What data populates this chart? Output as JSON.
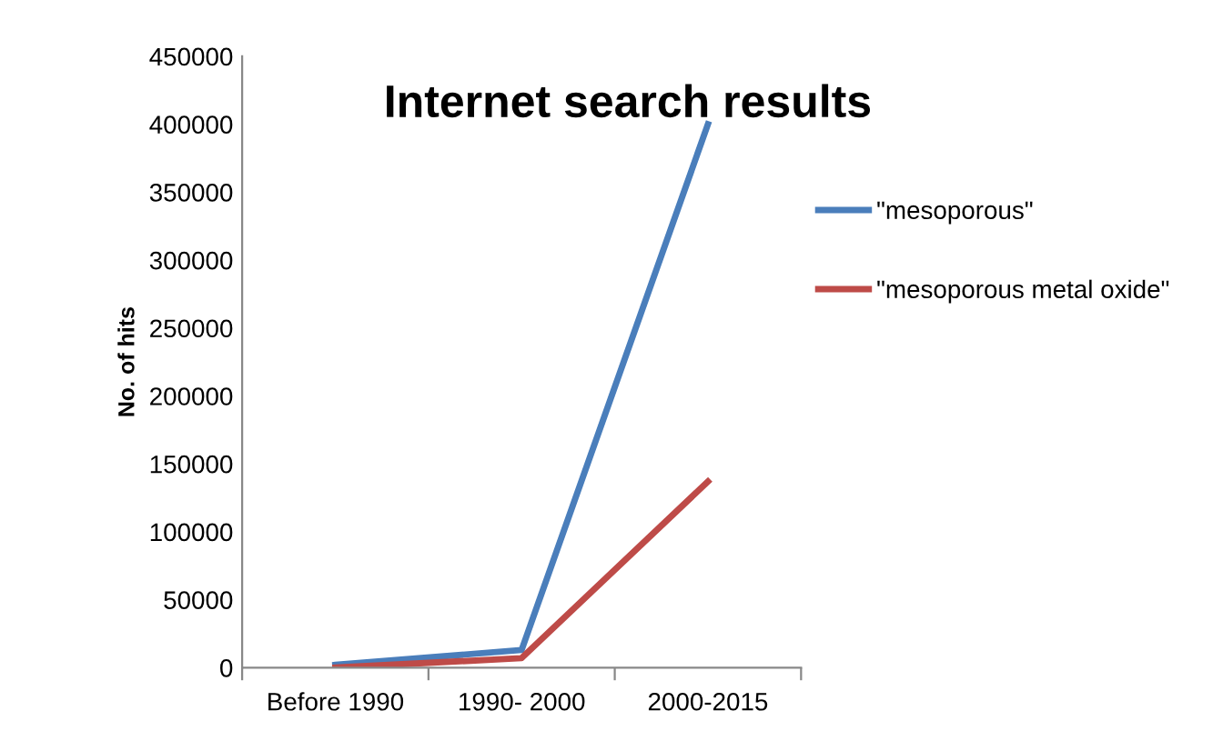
{
  "chart_data": {
    "type": "line",
    "title": "Internet search results",
    "ylabel": "No. of hits",
    "categories": [
      "Before 1990",
      "1990- 2000",
      "2000-2015"
    ],
    "series": [
      {
        "name": "\"mesoporous\"",
        "color": "#4a7ebb",
        "values": [
          2000,
          13000,
          400000
        ]
      },
      {
        "name": "\"mesoporous metal oxide\"",
        "color": "#be4b48",
        "values": [
          0,
          7000,
          137000
        ]
      }
    ],
    "ylim": [
      0,
      450000
    ],
    "yticks": [
      0,
      50000,
      100000,
      150000,
      200000,
      250000,
      300000,
      350000,
      400000,
      450000
    ],
    "grid": false,
    "legend": "right",
    "marker": "none",
    "line_style": "solid"
  }
}
